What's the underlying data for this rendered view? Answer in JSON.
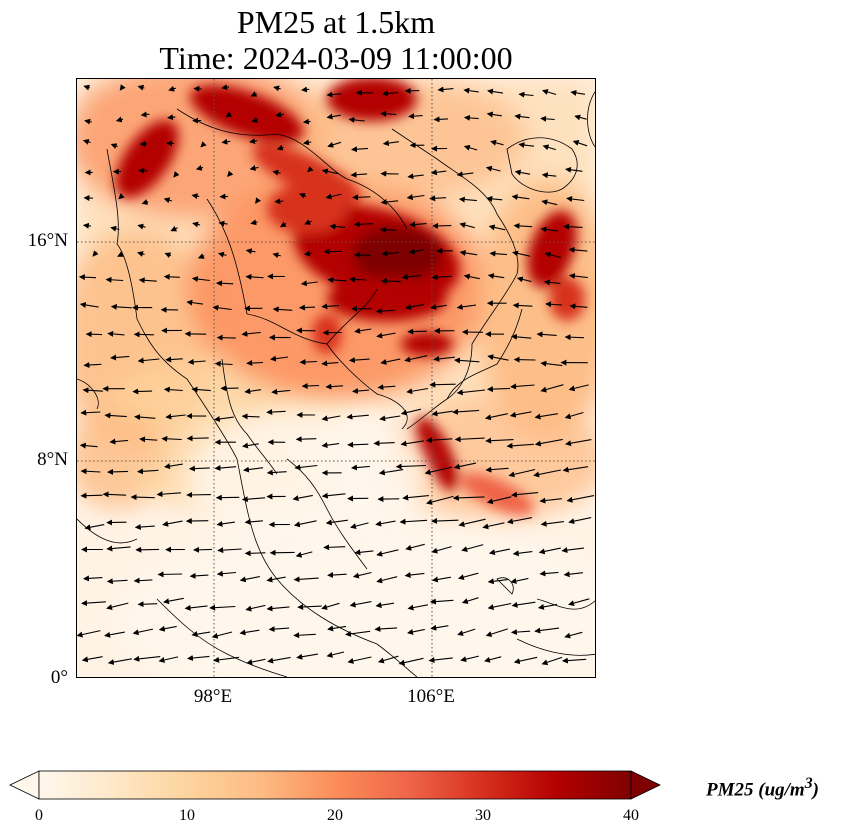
{
  "title": {
    "line1": "PM25 at 1.5km",
    "line2": "Time: 2024-03-09 11:00:00"
  },
  "map": {
    "variable": "PM25",
    "level": "1.5km",
    "time": "2024-03-09 11:00:00",
    "lon_range": [
      93,
      112
    ],
    "lat_range": [
      0,
      22
    ],
    "y_ticks": [
      {
        "lat": 16,
        "label": "16°N"
      },
      {
        "lat": 8,
        "label": "8°N"
      },
      {
        "lat": 0,
        "label": "0°"
      }
    ],
    "x_ticks": [
      {
        "lon": 98,
        "label": "98°E"
      },
      {
        "lon": 106,
        "label": "106°E"
      }
    ],
    "gridlines": "dotted",
    "colormap": "OrRd",
    "colors": [
      "#fff7ec",
      "#fee8c8",
      "#fdd49e",
      "#fdbb84",
      "#fc8d59",
      "#ef6548",
      "#d7301f",
      "#b30000",
      "#7f0000"
    ],
    "wind_vectors": "black arrows"
  },
  "colorbar": {
    "label": "PM25 (ug/m",
    "label_sup": "3",
    "label_close": ")",
    "min": 0,
    "max": 40,
    "extend": "both",
    "ticks": [
      {
        "value": 0,
        "label": "0"
      },
      {
        "value": 10,
        "label": "10"
      },
      {
        "value": 20,
        "label": "20"
      },
      {
        "value": 30,
        "label": "30"
      },
      {
        "value": 40,
        "label": "40"
      }
    ]
  }
}
